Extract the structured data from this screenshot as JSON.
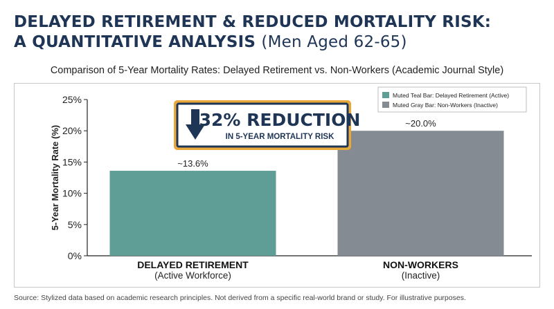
{
  "header": {
    "title_line1": "DELAYED RETIREMENT & REDUCED MORTALITY RISK:",
    "title_line2_bold": "A QUANTITATIVE ANALYSIS",
    "title_line2_light": "(Men Aged 62-65)",
    "subtitle": "Comparison of 5-Year Mortality Rates: Delayed Retirement vs. Non-Workers (Academic Journal Style)"
  },
  "callout": {
    "headline": "32% REDUCTION",
    "subline": "IN 5-YEAR MORTALITY RISK",
    "icon": "down-arrow-icon"
  },
  "footer": {
    "source": "Source: Stylized data based on academic research principles. Not derived from a specific real-world brand or study. For illustrative purposes."
  },
  "colors": {
    "title": "#1f3556",
    "teal_bar": "#5f9e97",
    "gray_bar": "#858b92",
    "callout_border": "#1f3556",
    "callout_glow": "#e8a93a"
  },
  "chart_data": {
    "type": "bar",
    "ylabel": "5-Year Mortality Rate (%)",
    "ylim": [
      0,
      25
    ],
    "yticks": [
      0,
      5,
      10,
      15,
      20,
      25
    ],
    "ytick_labels": [
      "0%",
      "5%",
      "10%",
      "15%",
      "20%",
      "25%"
    ],
    "categories": [
      {
        "name": "DELAYED RETIREMENT",
        "sub": "(Active Workforce)"
      },
      {
        "name": "NON-WORKERS",
        "sub": "(Inactive)"
      }
    ],
    "values": [
      13.6,
      20.0
    ],
    "data_labels": [
      "~13.6%",
      "~20.0%"
    ],
    "bar_colors": [
      "#5f9e97",
      "#858b92"
    ],
    "legend": [
      {
        "label": "Muted Teal Bar: Delayed Retirement (Active)",
        "color": "#5f9e97"
      },
      {
        "label": "Muted Gray Bar: Non-Workers (Inactive)",
        "color": "#858b92"
      }
    ],
    "legend_position": "top-right",
    "grid": false
  }
}
